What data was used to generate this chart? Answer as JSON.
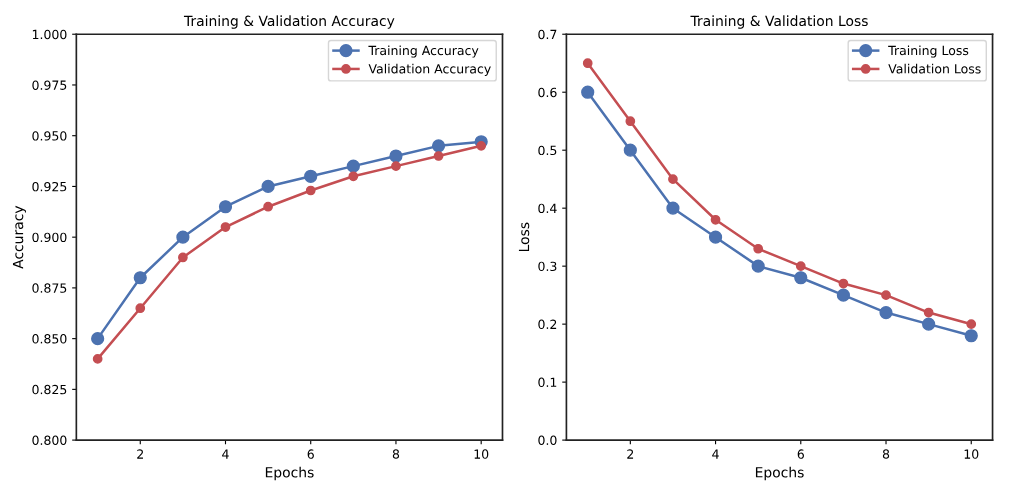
{
  "chart_data": [
    {
      "type": "line",
      "title": "Training & Validation Accuracy",
      "xlabel": "Epochs",
      "ylabel": "Accuracy",
      "x": [
        1,
        2,
        3,
        4,
        5,
        6,
        7,
        8,
        9,
        10
      ],
      "xlim": [
        0.5,
        10.5
      ],
      "xticks": [
        2,
        4,
        6,
        8,
        10
      ],
      "ylim": [
        0.8,
        1.0
      ],
      "yticks": [
        {
          "value": 0.8,
          "label": "0.800"
        },
        {
          "value": 0.825,
          "label": "0.825"
        },
        {
          "value": 0.85,
          "label": "0.850"
        },
        {
          "value": 0.875,
          "label": "0.875"
        },
        {
          "value": 0.9,
          "label": "0.900"
        },
        {
          "value": 0.925,
          "label": "0.925"
        },
        {
          "value": 0.95,
          "label": "0.950"
        },
        {
          "value": 0.975,
          "label": "0.975"
        },
        {
          "value": 1.0,
          "label": "1.000"
        }
      ],
      "grid": false,
      "legend": "top right",
      "marker": "circle",
      "line_style": "solid",
      "series": [
        {
          "name": "Training Accuracy",
          "color": "#4c72b0",
          "values": [
            0.85,
            0.88,
            0.9,
            0.915,
            0.925,
            0.93,
            0.935,
            0.94,
            0.945,
            0.947
          ]
        },
        {
          "name": "Validation Accuracy",
          "color": "#c44e52",
          "values": [
            0.84,
            0.865,
            0.89,
            0.905,
            0.915,
            0.923,
            0.93,
            0.935,
            0.94,
            0.945
          ]
        }
      ]
    },
    {
      "type": "line",
      "title": "Training & Validation Loss",
      "xlabel": "Epochs",
      "ylabel": "Loss",
      "x": [
        1,
        2,
        3,
        4,
        5,
        6,
        7,
        8,
        9,
        10
      ],
      "xlim": [
        0.5,
        10.5
      ],
      "xticks": [
        2,
        4,
        6,
        8,
        10
      ],
      "ylim": [
        0.0,
        0.7
      ],
      "yticks": [
        {
          "value": 0.0,
          "label": "0.0"
        },
        {
          "value": 0.1,
          "label": "0.1"
        },
        {
          "value": 0.2,
          "label": "0.2"
        },
        {
          "value": 0.3,
          "label": "0.3"
        },
        {
          "value": 0.4,
          "label": "0.4"
        },
        {
          "value": 0.5,
          "label": "0.5"
        },
        {
          "value": 0.6,
          "label": "0.6"
        },
        {
          "value": 0.7,
          "label": "0.7"
        }
      ],
      "grid": false,
      "legend": "top right",
      "marker": "circle",
      "line_style": "solid",
      "series": [
        {
          "name": "Training Loss",
          "color": "#4c72b0",
          "values": [
            0.6,
            0.5,
            0.4,
            0.35,
            0.3,
            0.28,
            0.25,
            0.22,
            0.2,
            0.18
          ]
        },
        {
          "name": "Validation Loss",
          "color": "#c44e52",
          "values": [
            0.65,
            0.55,
            0.45,
            0.38,
            0.33,
            0.3,
            0.27,
            0.25,
            0.22,
            0.2
          ]
        }
      ]
    }
  ]
}
